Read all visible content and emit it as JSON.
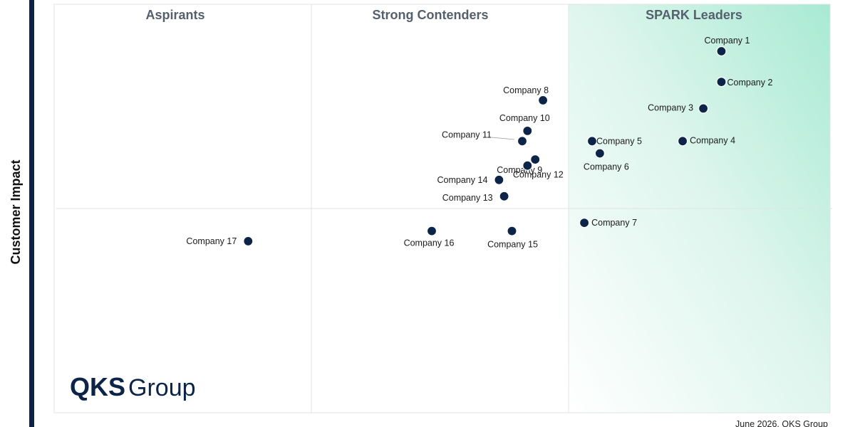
{
  "chart_data": {
    "type": "scatter",
    "title": "",
    "xlabel": "",
    "ylabel": "Customer Impact",
    "xlim": [
      0,
      3
    ],
    "ylim": [
      0,
      2
    ],
    "grid": false,
    "quadrants": [
      "Aspirants",
      "Strong Contenders",
      "SPARK Leaders"
    ],
    "points": [
      {
        "label": "Company 1",
        "x": 2.58,
        "y": 1.77
      },
      {
        "label": "Company 2",
        "x": 2.58,
        "y": 1.62
      },
      {
        "label": "Company 3",
        "x": 2.51,
        "y": 1.49
      },
      {
        "label": "Company 4",
        "x": 2.43,
        "y": 1.33
      },
      {
        "label": "Company 5",
        "x": 2.08,
        "y": 1.33
      },
      {
        "label": "Company 6",
        "x": 2.11,
        "y": 1.27
      },
      {
        "label": "Company 7",
        "x": 2.05,
        "y": 0.93
      },
      {
        "label": "Company 8",
        "x": 1.89,
        "y": 1.53
      },
      {
        "label": "Company 9",
        "x": 1.86,
        "y": 1.24
      },
      {
        "label": "Company 10",
        "x": 1.83,
        "y": 1.38
      },
      {
        "label": "Company 11",
        "x": 1.81,
        "y": 1.33
      },
      {
        "label": "Company 12",
        "x": 1.83,
        "y": 1.21
      },
      {
        "label": "Company 13",
        "x": 1.74,
        "y": 1.06
      },
      {
        "label": "Company 14",
        "x": 1.72,
        "y": 1.14
      },
      {
        "label": "Company 15",
        "x": 1.77,
        "y": 0.89
      },
      {
        "label": "Company 16",
        "x": 1.46,
        "y": 0.89
      },
      {
        "label": "Company 17",
        "x": 0.75,
        "y": 0.84
      }
    ]
  },
  "logo": {
    "bold": "QKS",
    "rest": "Group"
  },
  "footer": "June 2026, QKS Group"
}
